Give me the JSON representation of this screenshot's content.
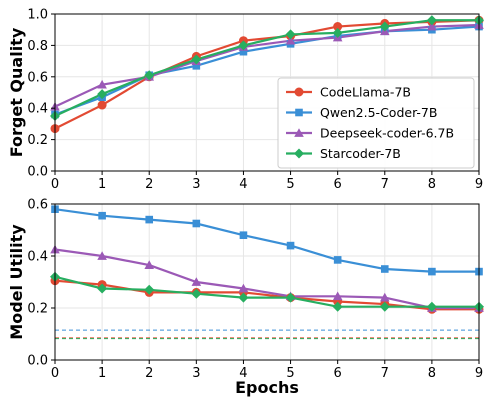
{
  "chart_data": [
    {
      "type": "line",
      "title": "",
      "xlabel": "",
      "ylabel": "Forget Quality",
      "x": [
        0,
        1,
        2,
        3,
        4,
        5,
        6,
        7,
        8,
        9
      ],
      "xlim": [
        0,
        9
      ],
      "ylim": [
        0.0,
        1.0
      ],
      "xticks": [
        "0",
        "1",
        "2",
        "3",
        "4",
        "5",
        "6",
        "7",
        "8",
        "9"
      ],
      "yticks": [
        "0.0",
        "0.2",
        "0.4",
        "0.6",
        "0.8",
        "1.0"
      ],
      "grid": true,
      "legend_position": "bottom-right",
      "series": [
        {
          "name": "CodeLlama-7B",
          "color": "#e24a33",
          "marker": "circle",
          "values": [
            0.27,
            0.42,
            0.6,
            0.73,
            0.83,
            0.86,
            0.92,
            0.94,
            0.95,
            0.96
          ]
        },
        {
          "name": "Qwen2.5-Coder-7B",
          "color": "#3a8fd6",
          "marker": "square",
          "values": [
            0.36,
            0.47,
            0.61,
            0.67,
            0.76,
            0.81,
            0.86,
            0.89,
            0.9,
            0.92
          ]
        },
        {
          "name": "Deepseek-coder-6.7B",
          "color": "#9b59b6",
          "marker": "triangle",
          "values": [
            0.41,
            0.55,
            0.6,
            0.7,
            0.79,
            0.83,
            0.85,
            0.89,
            0.92,
            0.93
          ]
        },
        {
          "name": "Starcoder-7B",
          "color": "#27ae60",
          "marker": "diamond",
          "values": [
            0.35,
            0.49,
            0.61,
            0.71,
            0.8,
            0.87,
            0.88,
            0.92,
            0.96,
            0.96
          ]
        }
      ]
    },
    {
      "type": "line",
      "title": "",
      "xlabel": "Epochs",
      "ylabel": "Model Utility",
      "x": [
        0,
        1,
        2,
        3,
        4,
        5,
        6,
        7,
        8,
        9
      ],
      "xlim": [
        0,
        9
      ],
      "ylim": [
        0.0,
        0.6
      ],
      "xticks": [
        "0",
        "1",
        "2",
        "3",
        "4",
        "5",
        "6",
        "7",
        "8",
        "9"
      ],
      "yticks": [
        "0.0",
        "0.2",
        "0.4",
        "0.6"
      ],
      "grid": true,
      "series": [
        {
          "name": "CodeLlama-7B",
          "color": "#e24a33",
          "marker": "circle",
          "values": [
            0.305,
            0.29,
            0.26,
            0.26,
            0.26,
            0.24,
            0.225,
            0.215,
            0.195,
            0.195
          ]
        },
        {
          "name": "Qwen2.5-Coder-7B",
          "color": "#3a8fd6",
          "marker": "square",
          "values": [
            0.58,
            0.555,
            0.54,
            0.525,
            0.48,
            0.44,
            0.385,
            0.35,
            0.34,
            0.34
          ]
        },
        {
          "name": "Deepseek-coder-6.7B",
          "color": "#9b59b6",
          "marker": "triangle",
          "values": [
            0.425,
            0.4,
            0.365,
            0.3,
            0.275,
            0.245,
            0.245,
            0.24,
            0.2,
            0.2
          ]
        },
        {
          "name": "Starcoder-7B",
          "color": "#27ae60",
          "marker": "diamond",
          "values": [
            0.32,
            0.275,
            0.27,
            0.255,
            0.24,
            0.24,
            0.205,
            0.205,
            0.205,
            0.205
          ]
        }
      ],
      "reference_lines": [
        {
          "y": 0.115,
          "color": "#3a8fd6",
          "style": "dashed"
        },
        {
          "y": 0.085,
          "color": "#e24a33",
          "style": "dashed"
        },
        {
          "y": 0.082,
          "color": "#27ae60",
          "style": "dashed"
        }
      ]
    }
  ]
}
